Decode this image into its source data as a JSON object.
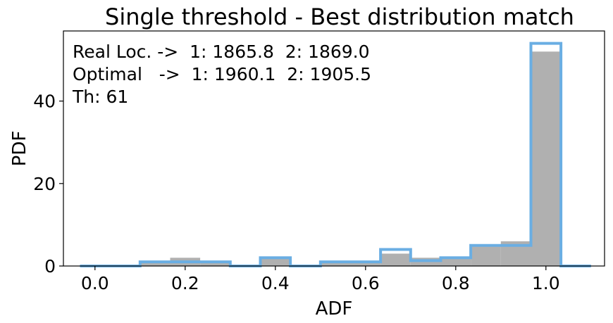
{
  "chart_data": {
    "type": "bar",
    "title": "Single threshold - Best distribution match",
    "xlabel": "ADF",
    "ylabel": "PDF",
    "xlim": [
      -0.07,
      1.13
    ],
    "ylim": [
      0,
      57
    ],
    "x_ticks": [
      0.0,
      0.2,
      0.4,
      0.6,
      0.8,
      1.0
    ],
    "x_tick_labels": [
      "0.0",
      "0.2",
      "0.4",
      "0.6",
      "0.8",
      "1.0"
    ],
    "y_ticks": [
      0,
      20,
      40
    ],
    "y_tick_labels": [
      "0",
      "20",
      "40"
    ],
    "grid": false,
    "bin_edges": [
      -0.0333,
      0.0333,
      0.1,
      0.1667,
      0.2333,
      0.3,
      0.3667,
      0.4333,
      0.5,
      0.5667,
      0.6333,
      0.7,
      0.7667,
      0.8333,
      0.9,
      0.9667,
      1.0333,
      1.1
    ],
    "series": [
      {
        "style": "filled",
        "color": "#b0b0b0",
        "values": [
          0,
          0,
          1,
          2,
          1,
          0,
          2,
          0,
          1,
          1,
          3,
          2,
          2,
          5,
          6,
          52,
          0
        ]
      },
      {
        "style": "step",
        "color": "#6aaee3",
        "values": [
          0,
          0,
          1,
          1,
          1,
          0,
          2,
          0,
          1,
          1,
          4,
          1.3,
          2,
          5,
          5,
          54,
          0
        ]
      }
    ],
    "annotations": [
      "Real Loc. ->  1: 1865.8  2: 1869.0",
      "Optimal   ->  1: 1960.1  2: 1905.5",
      "Th: 61"
    ]
  }
}
